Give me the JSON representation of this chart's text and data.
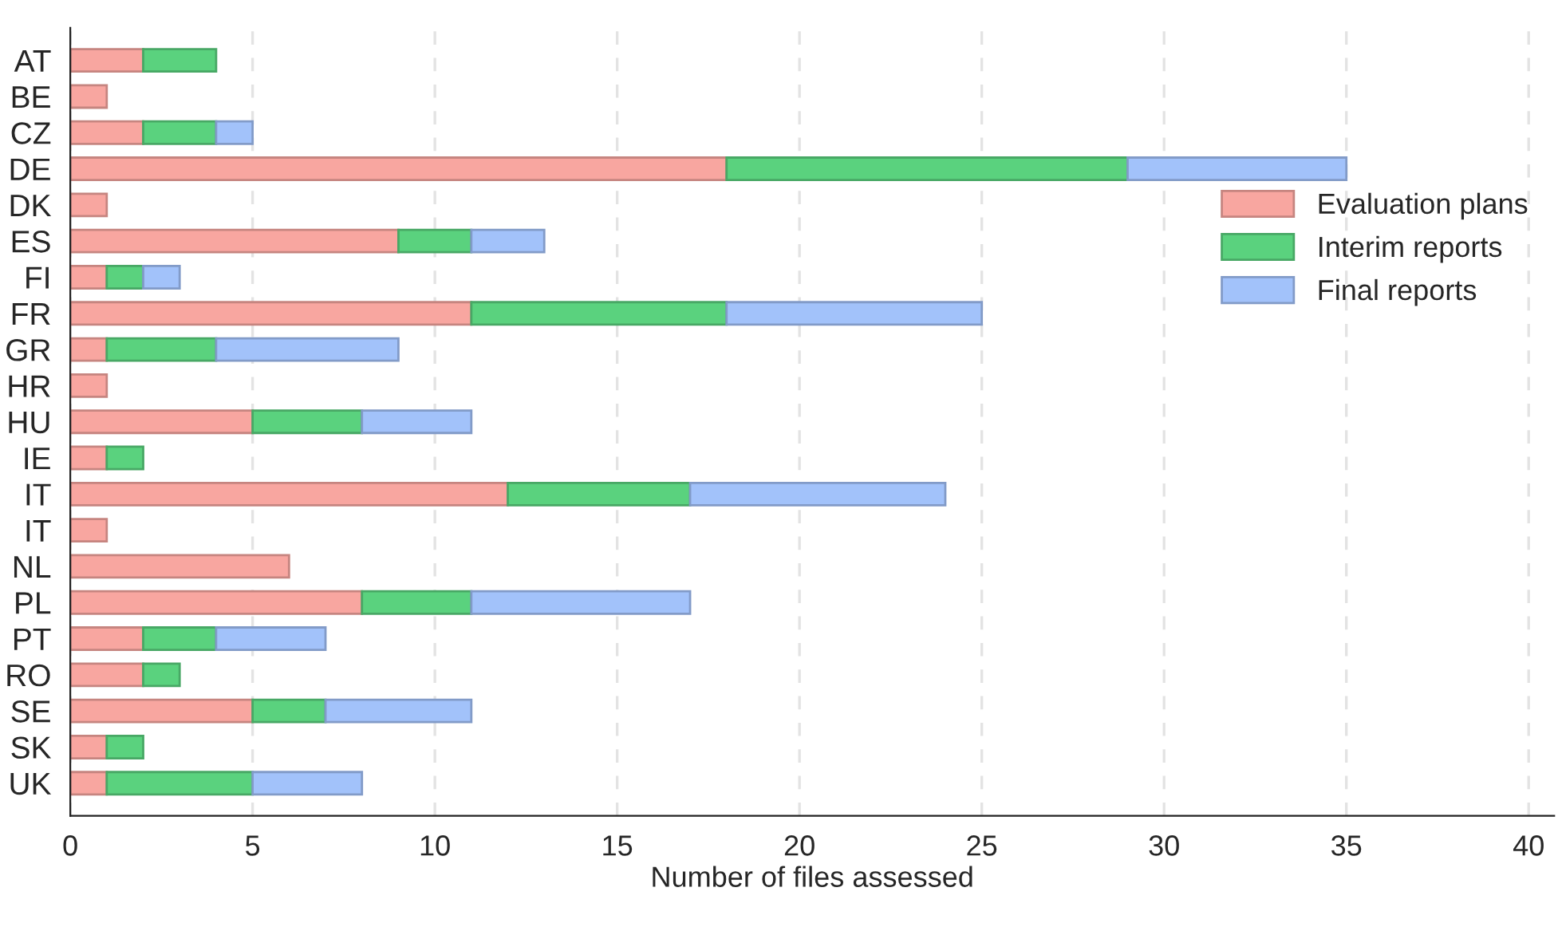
{
  "chart_data": {
    "type": "bar",
    "orientation": "horizontal",
    "stacked": true,
    "xlabel": "Number of files assessed",
    "categories": [
      "AT",
      "BE",
      "CZ",
      "DE",
      "DK",
      "ES",
      "FI",
      "FR",
      "GR",
      "HR",
      "HU",
      "IE",
      "IT",
      "IT",
      "NL",
      "PL",
      "PT",
      "RO",
      "SE",
      "SK",
      "UK"
    ],
    "series": [
      {
        "name": "Evaluation plans",
        "color": "#f8a6a0",
        "values": [
          2,
          1,
          2,
          18,
          1,
          9,
          1,
          11,
          1,
          1,
          5,
          1,
          12,
          1,
          6,
          8,
          2,
          2,
          5,
          1,
          1
        ]
      },
      {
        "name": "Interim reports",
        "color": "#5ad27e",
        "values": [
          2,
          0,
          2,
          11,
          0,
          2,
          1,
          7,
          3,
          0,
          3,
          1,
          5,
          0,
          0,
          3,
          2,
          1,
          2,
          1,
          4
        ]
      },
      {
        "name": "Final reports",
        "color": "#a2c2fa",
        "values": [
          0,
          0,
          1,
          6,
          0,
          2,
          1,
          7,
          5,
          0,
          3,
          0,
          7,
          0,
          0,
          6,
          3,
          0,
          4,
          0,
          3
        ]
      }
    ],
    "xlim": [
      0,
      40.7
    ],
    "xticks": [
      0,
      5,
      10,
      15,
      20,
      25,
      30,
      35,
      40
    ],
    "grid": "x",
    "legend": "right"
  }
}
